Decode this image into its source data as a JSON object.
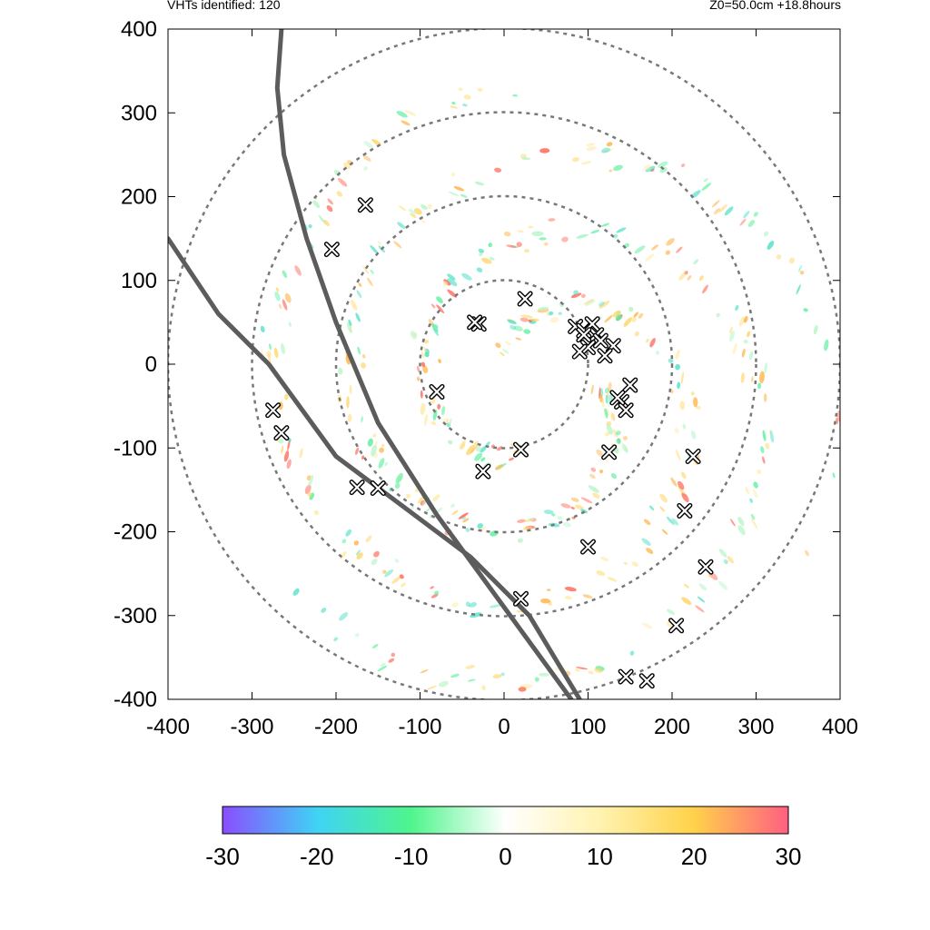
{
  "header": {
    "left": "VHTs identified: 120",
    "right": "Z0=50.0cm  +18.8hours"
  },
  "chart_data": {
    "type": "scatter",
    "title": "",
    "xlabel": "",
    "ylabel": "",
    "xlim": [
      -400,
      400
    ],
    "ylim": [
      -400,
      400
    ],
    "xticks": [
      "-400",
      "-300",
      "-200",
      "-100",
      "0",
      "100",
      "200",
      "300",
      "400"
    ],
    "yticks": [
      "400",
      "300",
      "200",
      "100",
      "0",
      "-100",
      "-200",
      "-300",
      "-400"
    ],
    "grid": false,
    "range_rings": [
      100,
      200,
      300,
      400
    ],
    "ring_color": "#777777",
    "track_color": "#5c5c5c",
    "tracks": [
      {
        "points": [
          [
            -265,
            400
          ],
          [
            -270,
            330
          ],
          [
            -262,
            250
          ],
          [
            -235,
            150
          ],
          [
            -200,
            50
          ],
          [
            -150,
            -70
          ],
          [
            -80,
            -180
          ],
          [
            0,
            -290
          ],
          [
            80,
            -400
          ]
        ]
      },
      {
        "points": [
          [
            -400,
            150
          ],
          [
            -340,
            60
          ],
          [
            -280,
            0
          ],
          [
            -200,
            -110
          ],
          [
            -120,
            -170
          ],
          [
            -40,
            -230
          ],
          [
            30,
            -300
          ],
          [
            90,
            -400
          ]
        ]
      }
    ],
    "vht_markers": [
      [
        -165,
        190
      ],
      [
        -205,
        137
      ],
      [
        25,
        78
      ],
      [
        -30,
        48
      ],
      [
        -35,
        50
      ],
      [
        85,
        45
      ],
      [
        95,
        40
      ],
      [
        105,
        48
      ],
      [
        110,
        35
      ],
      [
        100,
        20
      ],
      [
        90,
        15
      ],
      [
        115,
        28
      ],
      [
        130,
        22
      ],
      [
        95,
        35
      ],
      [
        120,
        10
      ],
      [
        150,
        -25
      ],
      [
        140,
        -45
      ],
      [
        145,
        -55
      ],
      [
        135,
        -40
      ],
      [
        -80,
        -33
      ],
      [
        -275,
        -55
      ],
      [
        -265,
        -82
      ],
      [
        20,
        -102
      ],
      [
        -25,
        -128
      ],
      [
        125,
        -105
      ],
      [
        225,
        -110
      ],
      [
        -175,
        -147
      ],
      [
        -150,
        -148
      ],
      [
        215,
        -175
      ],
      [
        100,
        -218
      ],
      [
        240,
        -242
      ],
      [
        20,
        -280
      ],
      [
        205,
        -312
      ],
      [
        145,
        -373
      ],
      [
        170,
        -378
      ]
    ],
    "colorbar": {
      "min": -30,
      "max": 30,
      "ticks": [
        "-30",
        "-20",
        "-10",
        "0",
        "10",
        "20",
        "30"
      ],
      "colors": [
        "#8a4dff",
        "#3fd3f5",
        "#4ef58c",
        "#ffffff",
        "#fff3b0",
        "#ffd24a",
        "#ff5f82"
      ]
    }
  }
}
